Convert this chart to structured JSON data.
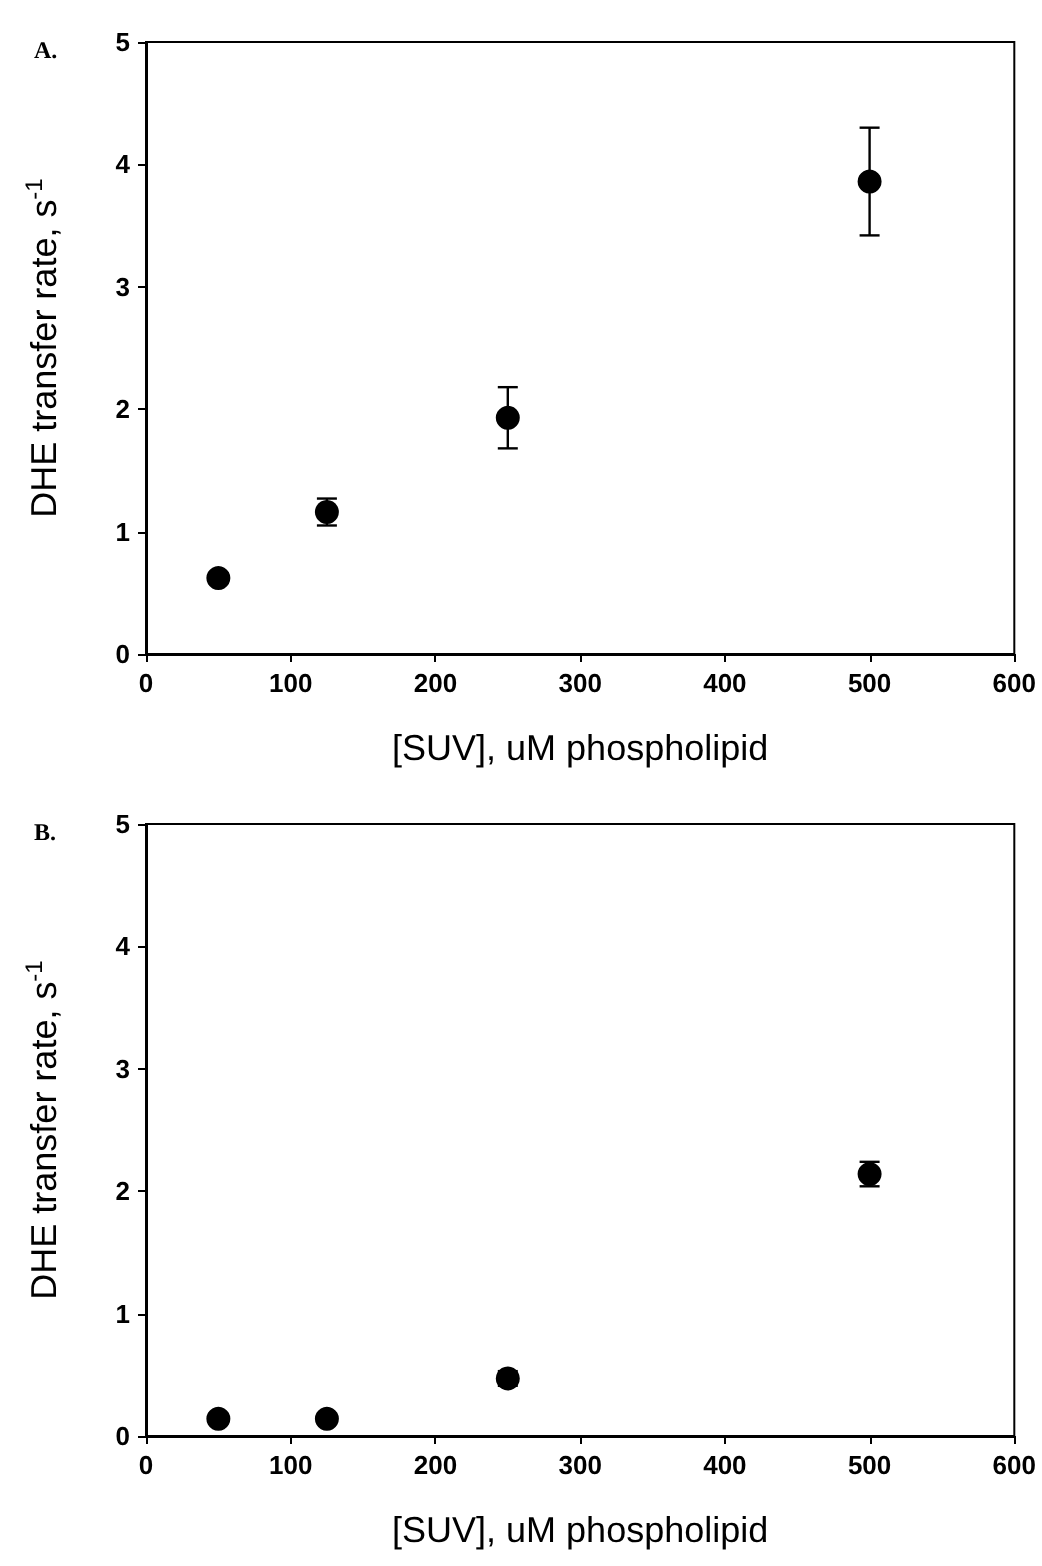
{
  "chart_data": [
    {
      "type": "scatter",
      "title": "A.",
      "xlabel": "[SUV], uM phospholipid",
      "ylabel": "DHE transfer rate, s$^{-1}$",
      "x": [
        50,
        125,
        250,
        500
      ],
      "series": [
        {
          "color": "#000000",
          "values": [
            0.62,
            1.16,
            1.93,
            3.86
          ],
          "errors": [
            0.04,
            0.11,
            0.25,
            0.44
          ]
        }
      ],
      "xlim": [
        0,
        600
      ],
      "xticks": [
        0,
        100,
        200,
        300,
        400,
        500,
        600
      ],
      "ylim": [
        0,
        5
      ],
      "yticks": [
        0,
        1,
        2,
        3,
        4,
        5
      ],
      "marker": "circle"
    },
    {
      "type": "scatter",
      "title": "B.",
      "xlabel": "[SUV], uM phospholipid",
      "ylabel": "DHE transfer rate, s$^{-1}$",
      "x": [
        50,
        125,
        250,
        500
      ],
      "series": [
        {
          "color": "#000000",
          "values": [
            0.14,
            0.14,
            0.47,
            2.14
          ],
          "errors": [
            null,
            null,
            0.06,
            0.1
          ]
        }
      ],
      "xlim": [
        0,
        600
      ],
      "xticks": [
        0,
        100,
        200,
        300,
        400,
        500,
        600
      ],
      "ylim": [
        0,
        5
      ],
      "yticks": [
        0,
        1,
        2,
        3,
        4,
        5
      ],
      "marker": "circle"
    }
  ]
}
